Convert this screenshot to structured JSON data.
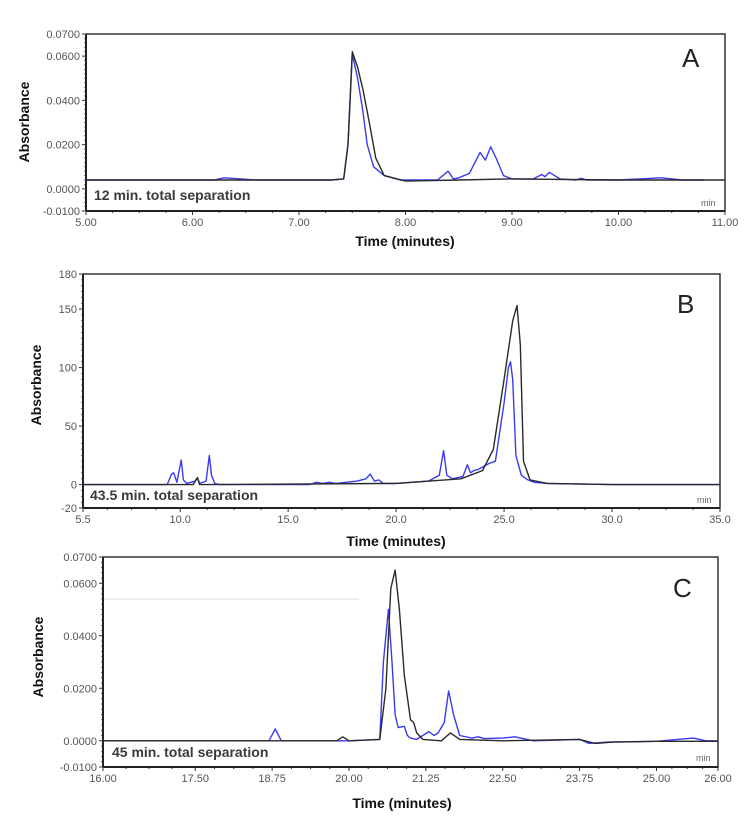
{
  "colors": {
    "blue_trace": "#3a3af0",
    "black_trace": "#2a2a2a",
    "frame": "#333333"
  },
  "chart_data": [
    {
      "type": "line",
      "panel": "A",
      "annotation": "12 min. total separation",
      "unit": "min",
      "xlabel": "Time (minutes)",
      "ylabel": "Absorbance",
      "xlim": [
        5.0,
        11.0
      ],
      "ylim": [
        -0.01,
        0.07
      ],
      "xticks": [
        "5.00",
        "6.00",
        "7.00",
        "8.00",
        "9.00",
        "10.00",
        "11.00"
      ],
      "xtick_values": [
        5.0,
        6.0,
        7.0,
        8.0,
        9.0,
        10.0,
        11.0
      ],
      "yticks": [
        "0.0700",
        "0.0600",
        "0.0400",
        "0.0200",
        "0.0000",
        "-0.0100"
      ],
      "ytick_values": [
        0.07,
        0.06,
        0.04,
        0.02,
        0.0,
        -0.01
      ],
      "series": [
        {
          "name": "black",
          "color": "#2a2a2a",
          "x": [
            5.0,
            7.3,
            7.42,
            7.46,
            7.5,
            7.55,
            7.6,
            7.66,
            7.72,
            7.8,
            8.0,
            8.5,
            9.0,
            10.0,
            11.0
          ],
          "y": [
            0.004,
            0.004,
            0.0045,
            0.02,
            0.062,
            0.055,
            0.045,
            0.03,
            0.014,
            0.006,
            0.0035,
            0.004,
            0.0045,
            0.004,
            0.004
          ]
        },
        {
          "name": "blue",
          "color": "#3a3af0",
          "x": [
            5.0,
            6.2,
            6.3,
            6.45,
            6.6,
            7.3,
            7.42,
            7.46,
            7.5,
            7.55,
            7.6,
            7.64,
            7.7,
            7.8,
            7.95,
            8.3,
            8.4,
            8.45,
            8.5,
            8.6,
            8.7,
            8.75,
            8.8,
            8.85,
            8.92,
            9.0,
            9.2,
            9.28,
            9.31,
            9.35,
            9.45,
            9.6,
            9.65,
            9.7,
            10.0,
            10.4,
            10.6,
            10.8
          ],
          "y": [
            0.004,
            0.004,
            0.005,
            0.0045,
            0.004,
            0.004,
            0.0045,
            0.02,
            0.061,
            0.05,
            0.035,
            0.02,
            0.01,
            0.006,
            0.004,
            0.004,
            0.008,
            0.0045,
            0.005,
            0.007,
            0.0165,
            0.013,
            0.019,
            0.014,
            0.006,
            0.0045,
            0.0045,
            0.0065,
            0.0055,
            0.0075,
            0.0045,
            0.004,
            0.0048,
            0.004,
            0.004,
            0.005,
            0.004,
            0.004
          ]
        }
      ]
    },
    {
      "type": "line",
      "panel": "B",
      "annotation": "43.5 min. total separation",
      "unit": "min",
      "xlabel": "Time (minutes)",
      "ylabel": "Absorbance",
      "xlim": [
        5.5,
        35.0
      ],
      "ylim": [
        -20,
        180
      ],
      "xticks": [
        "5.5",
        "10.0",
        "15.0",
        "20.0",
        "25.0",
        "30.0",
        "35.0"
      ],
      "xtick_values": [
        5.5,
        10.0,
        15.0,
        20.0,
        25.0,
        30.0,
        35.0
      ],
      "yticks": [
        "180",
        "150",
        "100",
        "50",
        "0",
        "-20"
      ],
      "ytick_values": [
        180,
        150,
        100,
        50,
        0,
        -20
      ],
      "series": [
        {
          "name": "black",
          "color": "#2a2a2a",
          "x": [
            5.5,
            10.6,
            10.8,
            10.9,
            11.1,
            20.0,
            23.0,
            24.0,
            24.5,
            25.0,
            25.4,
            25.6,
            25.75,
            25.9,
            26.2,
            27.0,
            30.0,
            35.0
          ],
          "y": [
            0,
            0,
            6,
            0,
            0,
            1,
            5,
            12,
            30,
            90,
            140,
            153,
            120,
            20,
            4,
            1,
            0,
            0
          ]
        },
        {
          "name": "blue",
          "color": "#3a3af0",
          "x": [
            5.5,
            9.4,
            9.6,
            9.7,
            9.85,
            10.05,
            10.15,
            10.3,
            10.7,
            10.8,
            10.9,
            11.2,
            11.35,
            11.45,
            11.6,
            11.8,
            16.0,
            16.3,
            16.6,
            16.9,
            17.2,
            18.2,
            18.6,
            18.8,
            19.0,
            19.2,
            19.4,
            20.0,
            21.5,
            22.0,
            22.2,
            22.35,
            22.6,
            23.1,
            23.3,
            23.45,
            23.6,
            23.8,
            24.0,
            24.3,
            24.6,
            25.0,
            25.2,
            25.3,
            25.4,
            25.55,
            25.8,
            26.1,
            26.4,
            27.0,
            30.0,
            35.0
          ],
          "y": [
            0,
            0,
            9,
            10,
            2,
            21,
            4,
            1,
            3,
            6,
            1,
            3,
            25,
            8,
            1,
            0,
            0,
            2,
            1,
            2,
            1,
            3,
            5,
            9,
            3,
            4,
            1,
            1,
            3,
            8,
            29,
            8,
            5,
            7,
            17,
            10,
            12,
            13,
            15,
            18,
            20,
            70,
            100,
            105,
            90,
            25,
            8,
            4,
            2,
            1,
            0,
            0
          ]
        }
      ]
    },
    {
      "type": "line",
      "panel": "C",
      "annotation": "45 min. total separation",
      "unit": "min",
      "xlabel": "Time (minutes)",
      "ylabel": "Absorbance",
      "xlim": [
        16.0,
        26.0
      ],
      "ylim": [
        -0.01,
        0.07
      ],
      "xticks": [
        "16.00",
        "17.50",
        "18.75",
        "20.00",
        "21.25",
        "22.50",
        "23.75",
        "25.00",
        "26.00"
      ],
      "xtick_values": [
        16.0,
        17.5,
        18.75,
        20.0,
        21.25,
        22.5,
        23.75,
        25.0,
        26.0
      ],
      "yticks": [
        "0.0700",
        "0.0600",
        "0.0400",
        "0.0200",
        "0.0000",
        "-0.0100"
      ],
      "ytick_values": [
        0.07,
        0.06,
        0.04,
        0.02,
        0.0,
        -0.01
      ],
      "series": [
        {
          "name": "black",
          "color": "#2a2a2a",
          "x": [
            16.0,
            19.8,
            19.9,
            20.0,
            20.5,
            20.6,
            20.68,
            20.75,
            20.82,
            20.9,
            21.0,
            21.05,
            21.1,
            21.2,
            21.5,
            21.65,
            21.8,
            22.5,
            23.75,
            24.0,
            24.3,
            25.0,
            26.0
          ],
          "y": [
            0.0,
            0.0,
            0.0015,
            0.0,
            0.0005,
            0.02,
            0.058,
            0.065,
            0.05,
            0.025,
            0.008,
            0.007,
            0.003,
            0.0005,
            0.0,
            0.003,
            0.0005,
            0.0,
            0.0005,
            -0.001,
            -0.0005,
            -0.0002,
            -0.0002
          ]
        },
        {
          "name": "blue",
          "color": "#3a3af0",
          "x": [
            16.0,
            18.7,
            18.8,
            18.9,
            20.0,
            20.5,
            20.56,
            20.64,
            20.7,
            20.75,
            20.8,
            20.9,
            20.95,
            21.0,
            21.1,
            21.3,
            21.38,
            21.45,
            21.55,
            21.62,
            21.7,
            21.8,
            22.0,
            22.1,
            22.2,
            22.5,
            22.7,
            23.0,
            23.75,
            23.9,
            24.2,
            25.0,
            25.6,
            25.8,
            26.0
          ],
          "y": [
            0.0,
            0.0,
            0.0045,
            0.0,
            0.0,
            0.0005,
            0.03,
            0.05,
            0.03,
            0.01,
            0.005,
            0.0055,
            0.002,
            0.001,
            0.0005,
            0.0035,
            0.002,
            0.003,
            0.007,
            0.019,
            0.01,
            0.002,
            0.001,
            0.0015,
            0.0008,
            0.001,
            0.0015,
            0.0,
            0.0005,
            -0.001,
            -0.0005,
            -0.0002,
            0.001,
            0.0,
            0.0
          ]
        }
      ]
    }
  ]
}
